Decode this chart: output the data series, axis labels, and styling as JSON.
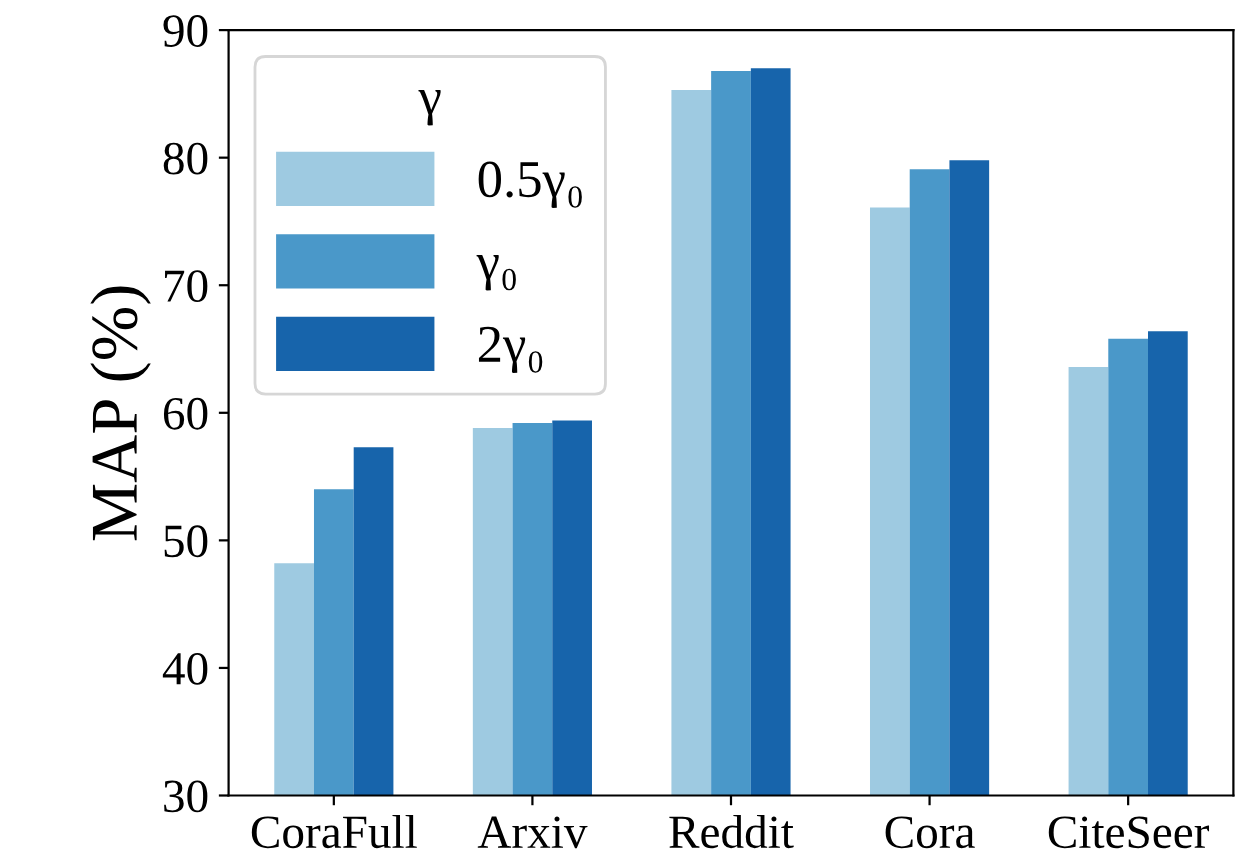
{
  "chart_data": {
    "type": "bar",
    "ylabel": "MAP (%)",
    "legend_title": "γ",
    "categories": [
      "CoraFull",
      "Arxiv",
      "Reddit",
      "Cora",
      "CiteSeer"
    ],
    "series": [
      {
        "name": "0.5γ₀",
        "color": "#9ecae1",
        "values": [
          48.2,
          58.8,
          85.3,
          76.1,
          63.6
        ]
      },
      {
        "name": "γ₀",
        "color": "#4a98c9",
        "values": [
          54.0,
          59.2,
          86.8,
          79.1,
          65.8
        ]
      },
      {
        "name": "2γ₀",
        "color": "#1764ab",
        "values": [
          57.3,
          59.4,
          87.0,
          79.8,
          66.4
        ]
      }
    ],
    "ylim": [
      30,
      90
    ],
    "yticks": [
      30,
      40,
      50,
      60,
      70,
      80,
      90
    ],
    "grid": false,
    "legend": "top left"
  }
}
